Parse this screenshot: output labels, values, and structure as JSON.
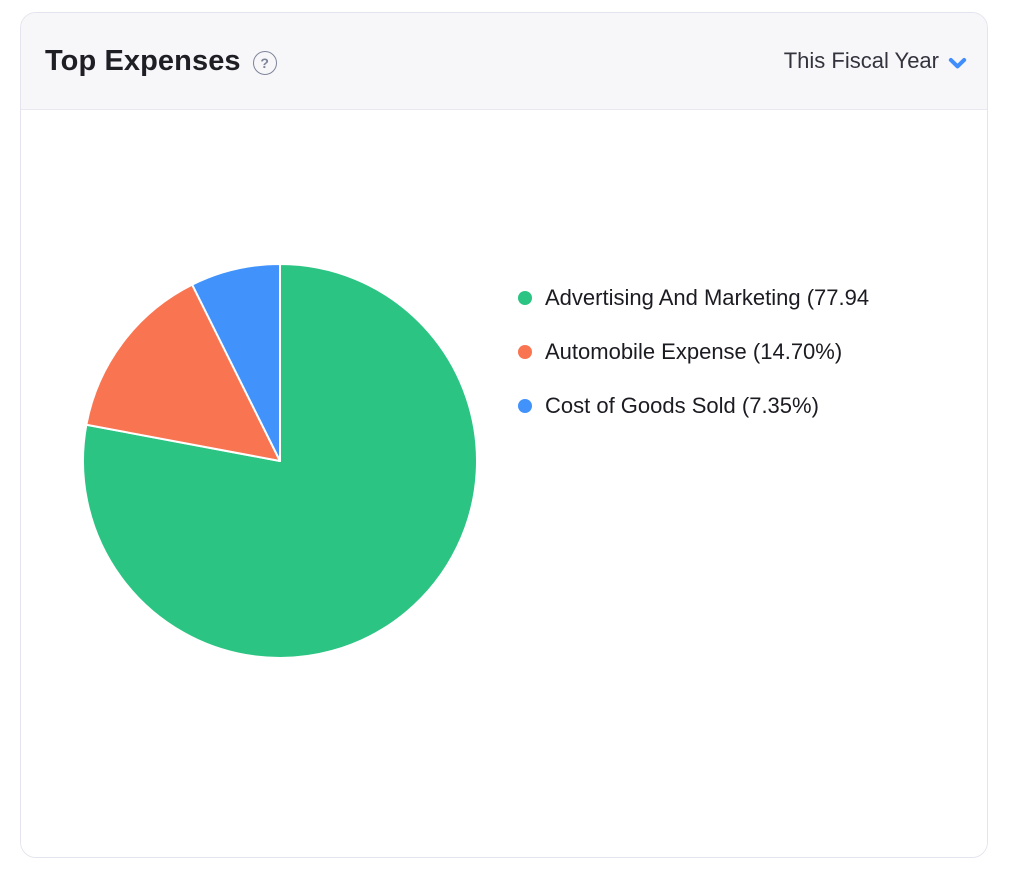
{
  "card": {
    "title": "Top Expenses",
    "help_glyph": "?",
    "period_selector": {
      "label": "This Fiscal Year"
    }
  },
  "legend": {
    "items": [
      {
        "text": "Advertising And Marketing (77.94",
        "color": "#2bc482"
      },
      {
        "text": "Automobile Expense (14.70%)",
        "color": "#f97450"
      },
      {
        "text": "Cost of Goods Sold (7.35%)",
        "color": "#4193fb"
      }
    ]
  },
  "chart_data": {
    "type": "pie",
    "title": "Top Expenses",
    "period": "This Fiscal Year",
    "slices": [
      {
        "label": "Advertising And Marketing",
        "value": 77.94,
        "color": "#2bc482"
      },
      {
        "label": "Automobile Expense",
        "value": 14.7,
        "color": "#f97450"
      },
      {
        "label": "Cost of Goods Sold",
        "value": 7.35,
        "color": "#4193fb"
      }
    ],
    "unit": "percent",
    "start_angle_deg": 0,
    "direction": "clockwise",
    "slice_border_color": "#ffffff",
    "legend_position": "right"
  },
  "colors": {
    "accent_blue": "#408dfb",
    "header_bg": "#f7f7fa",
    "card_border": "#e4e4ee",
    "header_border": "#e9e9f1",
    "text_primary": "#1e1e25",
    "text_secondary": "#33333d",
    "help_icon": "#7f8599"
  }
}
